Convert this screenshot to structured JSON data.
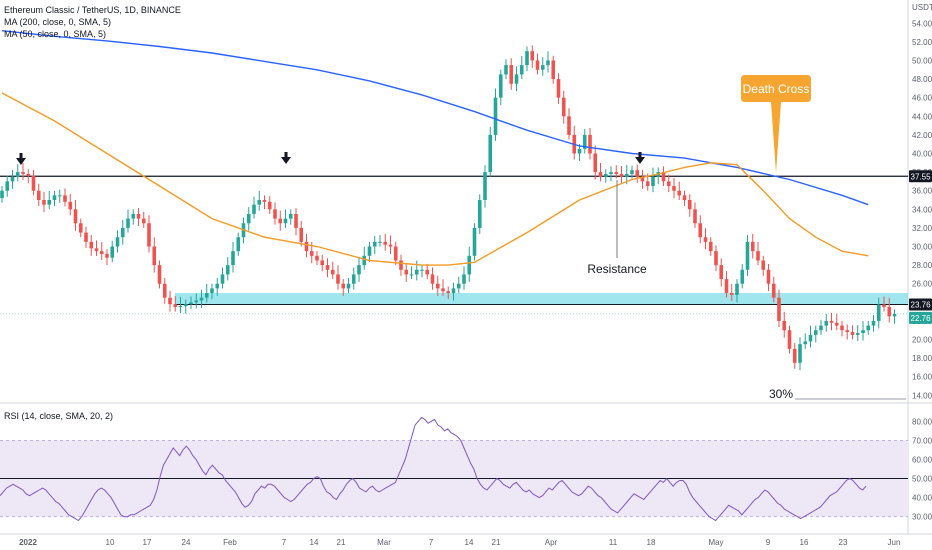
{
  "legend": {
    "symbol": "Ethereum Classic / TetherUS, 1D, BINANCE",
    "ma200": "MA (200, close, 0, SMA, 5)",
    "ma50": "MA (50, close, 0, SMA, 5)",
    "rsi": "RSI (14, close, SMA, 20, 2)"
  },
  "colors": {
    "up": "#26a69a",
    "down": "#ef5350",
    "ma200": "#2962ff",
    "ma50": "#f59a23",
    "rsi": "#7e57c2",
    "rsi_band": "#ede7f6",
    "support_zone": "#80deea",
    "callout": "#f6a630"
  },
  "chart_data": [
    {
      "type": "candlestick",
      "currency": "USDT",
      "ylim": [
        13.5,
        56.5
      ],
      "y_ticks": [
        "54.00",
        "52.00",
        "50.00",
        "48.00",
        "46.00",
        "44.00",
        "42.00",
        "40.00",
        "38.00",
        "36.00",
        "34.00",
        "32.00",
        "30.00",
        "28.00",
        "26.00",
        "24.00",
        "22.00",
        "20.00",
        "18.00",
        "16.00",
        "14.00"
      ],
      "x_ticks": [
        "2022",
        "10",
        "17",
        "24",
        "Feb",
        "7",
        "14",
        "21",
        "Mar",
        "7",
        "14",
        "21",
        "Apr",
        "11",
        "18",
        "May",
        "9",
        "16",
        "23",
        "Jun"
      ],
      "price_labels": [
        "37.55",
        "23.76",
        "22.76"
      ],
      "close": [
        36,
        37,
        37.5,
        38,
        37.8,
        37.6,
        36,
        35,
        34.5,
        35,
        35.5,
        35.5,
        34.8,
        34,
        32.5,
        31.5,
        30.5,
        29.8,
        29.5,
        29.2,
        28.8,
        30,
        31,
        32,
        33,
        33.5,
        33,
        32.5,
        30,
        28,
        26,
        24.5,
        23.8,
        23.5,
        23.6,
        23.8,
        24,
        24.2,
        24.5,
        25,
        25.5,
        26,
        27,
        28,
        29.5,
        31,
        32.5,
        33.5,
        34.5,
        35,
        34.8,
        34,
        33,
        32.5,
        33,
        33.5,
        32,
        30.5,
        29.5,
        29,
        28.5,
        28,
        27.5,
        27,
        26,
        25.5,
        26,
        27,
        28,
        29,
        30,
        30.5,
        30.5,
        30.2,
        30,
        28.5,
        27.5,
        27,
        27,
        27.5,
        27.5,
        27,
        26,
        25.5,
        25.2,
        25,
        25.5,
        26,
        27,
        29,
        32,
        35,
        38,
        42,
        46,
        48.5,
        49.5,
        47.5,
        48.5,
        49.5,
        51,
        50,
        49,
        49.5,
        50,
        48,
        46,
        44,
        42,
        40,
        40.5,
        42,
        40,
        38,
        37.5,
        37.8,
        38,
        37.8,
        37.5,
        37.8,
        38.2,
        37.5,
        37,
        36.5,
        37.5,
        38,
        37,
        36.5,
        36,
        35.5,
        35,
        34,
        32.5,
        31,
        30.5,
        29.5,
        28,
        26.5,
        25,
        24.8,
        26,
        27.5,
        30.5,
        29.5,
        28.5,
        27.5,
        26,
        24.5,
        22,
        21,
        19,
        17.5,
        19.5,
        19.8,
        20.5,
        21,
        21.5,
        22,
        21.8,
        21.5,
        21,
        20.8,
        20.5,
        20.7,
        21,
        21.5,
        22,
        23.76,
        23.5,
        22.5,
        22.76
      ],
      "ma200": {
        "name": "MA (200, close, 0, SMA, 5)",
        "x": [
          0,
          10,
          20,
          30,
          40,
          50,
          60,
          70,
          80,
          90,
          100,
          110,
          120,
          130,
          140,
          150,
          160,
          165
        ],
        "y": [
          53.2,
          52.6,
          52.1,
          51.5,
          50.8,
          49.9,
          49,
          47.8,
          46.3,
          44.5,
          42.5,
          40.8,
          40,
          39.5,
          38.5,
          37.2,
          35.5,
          34.5
        ]
      },
      "ma50": {
        "name": "MA (50, close, 0, SMA, 5)",
        "x": [
          0,
          10,
          20,
          30,
          40,
          50,
          60,
          70,
          80,
          85,
          90,
          100,
          110,
          120,
          125,
          130,
          135,
          140,
          145,
          150,
          155,
          160,
          165
        ],
        "y": [
          46.5,
          43.5,
          40,
          36.5,
          33,
          31,
          30,
          28.5,
          28,
          28,
          28.3,
          31.5,
          35,
          37.2,
          37.8,
          38.5,
          39,
          38.8,
          36,
          33,
          31,
          29.5,
          29
        ]
      },
      "levels": [
        37.55,
        23.76
      ],
      "support_zone": [
        23.76,
        25.0
      ],
      "annotations": {
        "callout": "Death Cross",
        "resistance": "Resistance",
        "percent": "30%"
      }
    },
    {
      "type": "line",
      "name": "RSI (14, close, SMA, 20, 2)",
      "ylim": [
        22,
        88
      ],
      "y_ticks": [
        "80.00",
        "70.00",
        "60.00",
        "50.00",
        "40.00",
        "30.00"
      ],
      "bands": [
        30,
        70
      ],
      "midline": 50,
      "values": [
        41,
        43,
        45,
        46,
        47,
        46,
        45,
        44,
        42,
        41,
        42,
        43,
        44,
        45,
        44,
        42,
        40,
        38,
        37,
        35,
        33,
        31,
        30,
        29,
        28,
        30,
        33,
        36,
        39,
        42,
        44,
        45,
        44,
        42,
        40,
        37,
        34,
        31,
        30,
        30,
        31,
        31,
        32,
        33,
        34,
        35,
        36,
        39,
        44,
        51,
        57,
        60,
        63,
        66,
        64,
        62,
        65,
        67,
        65,
        62,
        60,
        57,
        54,
        52,
        55,
        57,
        55,
        53,
        52,
        49,
        47,
        45,
        43,
        40,
        37,
        35,
        36,
        38,
        42,
        44,
        46,
        45,
        47,
        47,
        46,
        44,
        42,
        40,
        39,
        38,
        39,
        41,
        43,
        45,
        47,
        48,
        50,
        51,
        50,
        46,
        43,
        42,
        40,
        39,
        42,
        44,
        47,
        49,
        50,
        48,
        45,
        44,
        43,
        45,
        46,
        44,
        43,
        44,
        45,
        46,
        47,
        48,
        52,
        56,
        60,
        66,
        72,
        78,
        80,
        82,
        81,
        79,
        80,
        81,
        78,
        77,
        75,
        76,
        74,
        73,
        72,
        70,
        66,
        62,
        58,
        55,
        50,
        47,
        45,
        44,
        46,
        48,
        50,
        49,
        47,
        46,
        45,
        47,
        48,
        46,
        44,
        43,
        44,
        42,
        41,
        40,
        41,
        43,
        45,
        44,
        46,
        48,
        49,
        47,
        45,
        43,
        42,
        41,
        42,
        44,
        46,
        45,
        43,
        41,
        40,
        38,
        36,
        34,
        33,
        32,
        34,
        36,
        38,
        40,
        42,
        41,
        40,
        39,
        41,
        43,
        45,
        47,
        49,
        48,
        50,
        48,
        46,
        48,
        49,
        49,
        47,
        43,
        40,
        38,
        36,
        34,
        32,
        30,
        29,
        28,
        30,
        32,
        34,
        36,
        35,
        34,
        33,
        31,
        33,
        35,
        37,
        39,
        40,
        42,
        44,
        43,
        41,
        39,
        37,
        36,
        34,
        33,
        32,
        31,
        30,
        29,
        30,
        31,
        32,
        33,
        34,
        35,
        37,
        39,
        41,
        42,
        43,
        45,
        47,
        49,
        50,
        49,
        47,
        45,
        44,
        46
      ]
    }
  ]
}
